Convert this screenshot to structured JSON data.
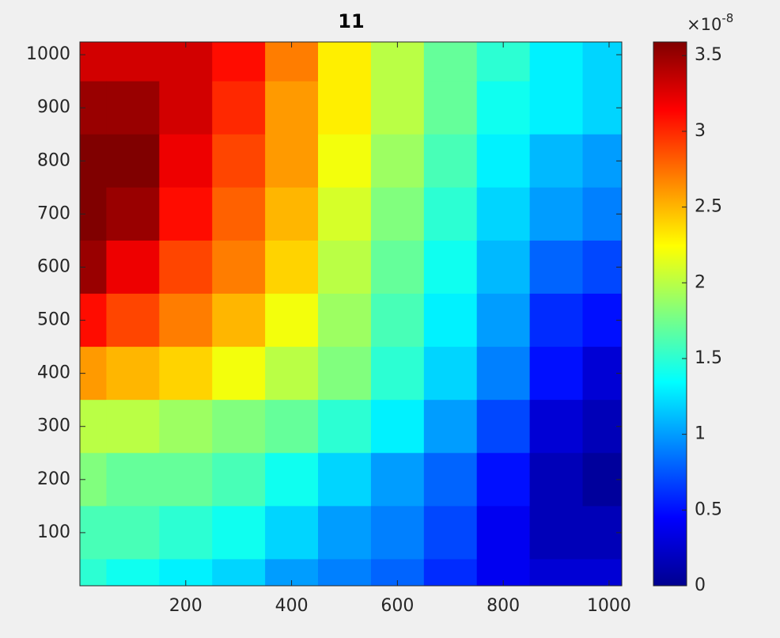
{
  "chart_data": {
    "type": "contour",
    "title": "11",
    "x": [
      0,
      100,
      200,
      300,
      400,
      500,
      600,
      700,
      800,
      900,
      1000
    ],
    "y": [
      1000,
      900,
      800,
      700,
      600,
      500,
      400,
      300,
      200,
      100,
      0
    ],
    "z": [
      [
        3.3,
        3.3,
        3.3,
        3.1,
        2.7,
        2.3,
        2.0,
        1.7,
        1.5,
        1.3,
        1.2
      ],
      [
        3.5,
        3.5,
        3.3,
        3.0,
        2.6,
        2.3,
        2.0,
        1.7,
        1.4,
        1.3,
        1.2
      ],
      [
        3.6,
        3.6,
        3.2,
        2.9,
        2.6,
        2.2,
        1.9,
        1.6,
        1.3,
        1.1,
        1.0
      ],
      [
        3.6,
        3.5,
        3.1,
        2.8,
        2.5,
        2.1,
        1.8,
        1.5,
        1.2,
        1.0,
        0.9
      ],
      [
        3.5,
        3.2,
        2.9,
        2.7,
        2.4,
        2.0,
        1.7,
        1.4,
        1.1,
        0.8,
        0.7
      ],
      [
        3.1,
        2.9,
        2.7,
        2.5,
        2.2,
        1.9,
        1.6,
        1.3,
        1.0,
        0.6,
        0.5
      ],
      [
        2.6,
        2.5,
        2.4,
        2.2,
        2.0,
        1.8,
        1.5,
        1.2,
        0.9,
        0.5,
        0.3
      ],
      [
        2.0,
        2.0,
        1.9,
        1.8,
        1.7,
        1.5,
        1.3,
        1.0,
        0.7,
        0.3,
        0.2
      ],
      [
        1.8,
        1.7,
        1.7,
        1.6,
        1.4,
        1.2,
        1.0,
        0.8,
        0.5,
        0.2,
        0.1
      ],
      [
        1.6,
        1.6,
        1.5,
        1.4,
        1.2,
        1.0,
        0.9,
        0.7,
        0.4,
        0.2,
        0.2
      ],
      [
        1.5,
        1.4,
        1.3,
        1.2,
        1.0,
        0.9,
        0.8,
        0.6,
        0.4,
        0.3,
        0.3
      ]
    ],
    "xlim": [
      0,
      1024
    ],
    "ylim": [
      0,
      1024
    ],
    "xticks": [
      200,
      400,
      600,
      800,
      1000
    ],
    "yticks": [
      100,
      200,
      300,
      400,
      500,
      600,
      700,
      800,
      900,
      1000
    ],
    "colormap": "jet",
    "clim": [
      0,
      3.59
    ],
    "cticks": [
      0,
      0.5,
      1,
      1.5,
      2,
      2.5,
      3,
      3.5
    ],
    "colorbar_multiplier": "×10",
    "colorbar_exponent": "-8"
  }
}
